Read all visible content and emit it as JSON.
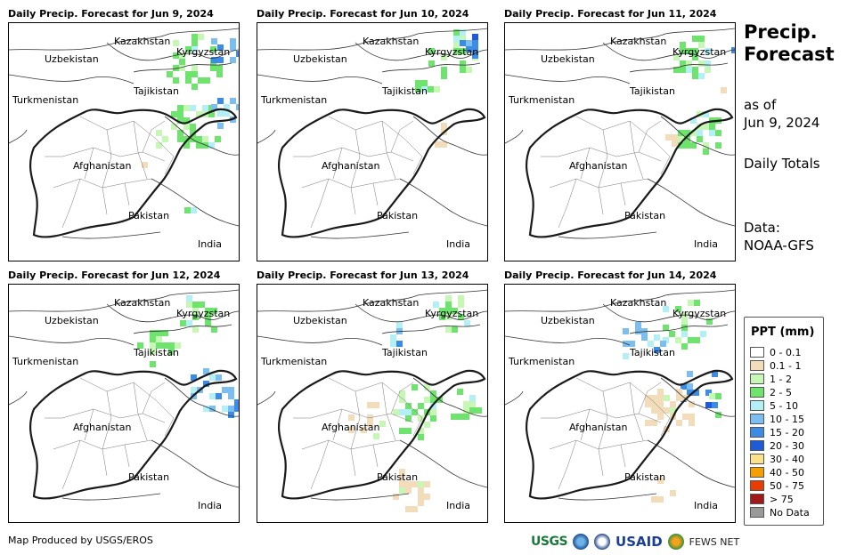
{
  "panels": [
    {
      "title": "Daily Precip. Forecast for Jun 9, 2024"
    },
    {
      "title": "Daily Precip. Forecast for Jun 10, 2024"
    },
    {
      "title": "Daily Precip. Forecast for Jun 11, 2024"
    },
    {
      "title": "Daily Precip. Forecast for Jun 12, 2024"
    },
    {
      "title": "Daily Precip. Forecast for Jun 13, 2024"
    },
    {
      "title": "Daily Precip. Forecast for Jun 14, 2024"
    }
  ],
  "map_labels": {
    "kazakhstan": "Kazakhstan",
    "kyrgyzstan": "Kyrgyzstan",
    "uzbekistan": "Uzbekistan",
    "tajikistan": "Tajikistan",
    "turkmenistan": "Turkmenistan",
    "afghanistan": "Afghanistan",
    "pakistan": "Pakistan",
    "india": "India"
  },
  "side": {
    "title_line1": "Precip.",
    "title_line2": "Forecast",
    "asof_line1": "as of",
    "asof_line2": "Jun 9, 2024",
    "totals": "Daily Totals",
    "data_line1": "Data:",
    "data_line2": "NOAA-GFS"
  },
  "legend": {
    "title": "PPT (mm)",
    "items": [
      {
        "label": "0 - 0.1",
        "color": "#ffffff"
      },
      {
        "label": "0.1 - 1",
        "color": "#f2dcb9"
      },
      {
        "label": "1 - 2",
        "color": "#c7f7b5"
      },
      {
        "label": "2 - 5",
        "color": "#6ee46e"
      },
      {
        "label": "5 - 10",
        "color": "#b3f0f5"
      },
      {
        "label": "10 - 15",
        "color": "#7cbef0"
      },
      {
        "label": "15 - 20",
        "color": "#3c8ce6"
      },
      {
        "label": "20 - 30",
        "color": "#1f5bd6"
      },
      {
        "label": "30 - 40",
        "color": "#fde28a"
      },
      {
        "label": "40 - 50",
        "color": "#f5a000"
      },
      {
        "label": "50 - 75",
        "color": "#eb3c00"
      },
      {
        "label": "> 75",
        "color": "#a11a1a"
      },
      {
        "label": "No Data",
        "color": "#999999"
      }
    ]
  },
  "credit": "Map Produced by USGS/EROS",
  "logos": {
    "usgs": "USGS",
    "usaid": "USAID",
    "fews": "FEWS NET"
  }
}
